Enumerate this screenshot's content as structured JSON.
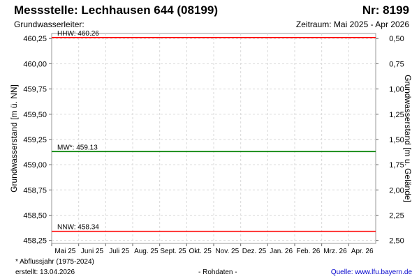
{
  "header": {
    "title": "Messstelle: Lechhausen 644 (08199)",
    "number": "Nr: 8199",
    "aquifer_label": "Grundwasserleiter:",
    "period": "Zeitraum: Mai 2025 - Apr 2026"
  },
  "footer": {
    "note": "* Abflussjahr (1975-2024)",
    "created": "erstellt:  13.04.2026",
    "raw": "- Rohdaten -",
    "source": "Quelle: www.lfu.bayern.de"
  },
  "chart_data": {
    "type": "line",
    "ylabel": "Grundwasserstand [m ü. NN]",
    "ylabel_right": "Grundwasserstand [m u. Gelände]",
    "ylim": [
      458.22,
      460.3
    ],
    "yticks": [
      460.25,
      460.0,
      459.75,
      459.5,
      459.25,
      459.0,
      458.75,
      458.5,
      458.25
    ],
    "ytick_labels": [
      "460,25",
      "460,00",
      "459,75",
      "459,50",
      "459,25",
      "459,00",
      "458,75",
      "458,50",
      "458,25"
    ],
    "right_ticks": [
      0.5,
      0.75,
      1.0,
      1.25,
      1.5,
      1.75,
      2.0,
      2.25,
      2.5
    ],
    "right_tick_labels": [
      "0,50",
      "0,75",
      "1,00",
      "1,25",
      "1,50",
      "1,75",
      "2,00",
      "2,25",
      "2,50"
    ],
    "right_zero_level": 460.75,
    "x_categories": [
      "Mai 25",
      "Juni 25",
      "Juli 25",
      "Aug. 25",
      "Sept. 25",
      "Okt. 25",
      "Nov. 25",
      "Dez. 25",
      "Jan. 26",
      "Feb. 26",
      "Mrz. 26",
      "Apr. 26"
    ],
    "grid": true,
    "reference_lines": [
      {
        "label": "HHW: 460.26",
        "value": 460.26,
        "color": "#ff0000"
      },
      {
        "label": "MW*: 459.13",
        "value": 459.13,
        "color": "#008000"
      },
      {
        "label": "NNW: 458.34",
        "value": 458.34,
        "color": "#ff0000"
      }
    ]
  }
}
